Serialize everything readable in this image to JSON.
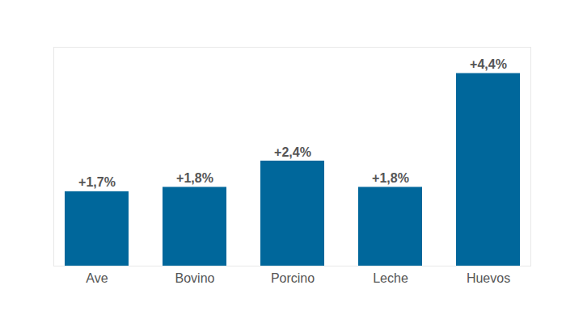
{
  "chart_data": {
    "type": "bar",
    "categories": [
      "Ave",
      "Bovino",
      "Porcino",
      "Leche",
      "Huevos"
    ],
    "values": [
      1.7,
      1.8,
      2.4,
      1.8,
      4.4
    ],
    "value_labels": [
      "+1,7%",
      "+1,8%",
      "+2,4%",
      "+1,8%",
      "+4,4%"
    ],
    "color": "#00679b",
    "ylim": [
      0,
      5
    ],
    "yticks": [],
    "grid": false,
    "data_labels": true,
    "tick_labels": "x"
  }
}
